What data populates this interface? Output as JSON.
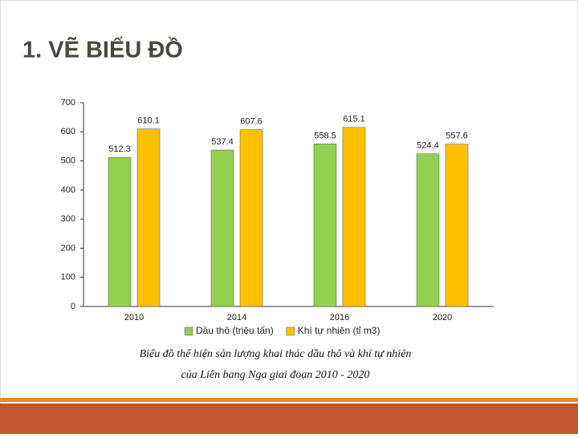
{
  "slide_title": "1. VẼ BIỂU ĐỒ",
  "chart_data": {
    "type": "bar",
    "categories": [
      "2010",
      "2014",
      "2016",
      "2020"
    ],
    "series": [
      {
        "name": "Dầu thô (triệu tấn)",
        "color": "#92d050",
        "values": [
          512.3,
          537.4,
          558.5,
          524.4
        ]
      },
      {
        "name": "Khí tự nhiên (tỉ m3)",
        "color": "#ffc000",
        "values": [
          610.1,
          607.6,
          615.1,
          557.6
        ]
      }
    ],
    "ylim": [
      0,
      700
    ],
    "yticks": [
      0,
      100,
      200,
      300,
      400,
      500,
      600,
      700
    ],
    "grid": false,
    "legend": "bottom",
    "caption": [
      "Biểu đồ thể hiện sản lượng khai thác dầu thô và khí tự nhiên",
      "của Liên bang Nga giai đoạn 2010 - 2020"
    ]
  }
}
